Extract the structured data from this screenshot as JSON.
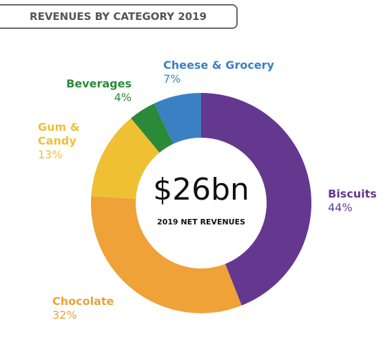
{
  "chart_data": {
    "type": "donut",
    "title": "REVENUES BY CATEGORY 2019",
    "categories": [
      "Biscuits",
      "Chocolate",
      "Gum & Candy",
      "Beverages",
      "Cheese & Grocery"
    ],
    "values": [
      44,
      32,
      13,
      4,
      7
    ],
    "value_labels": [
      "44%",
      "32%",
      "13%",
      "4%",
      "7%"
    ],
    "colors": [
      "#65388f",
      "#eea237",
      "#efc034",
      "#2b8a3a",
      "#3b80c3"
    ],
    "center_value": "$26bn",
    "center_label": "2019 NET REVENUES"
  }
}
